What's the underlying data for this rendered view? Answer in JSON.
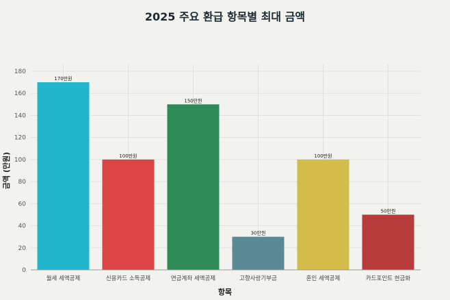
{
  "chart_data": {
    "type": "bar",
    "title": "2025 주요 환급 항목별 최대 금액",
    "xlabel": "항목",
    "ylabel": "금액 (만원)",
    "ylim": [
      0,
      180
    ],
    "yticks": [
      0,
      20,
      40,
      60,
      80,
      100,
      120,
      140,
      160,
      180
    ],
    "grid": true,
    "categories": [
      "월세 세액공제",
      "신용카드 소득공제",
      "연금계좌 세액공제",
      "고향사랑기부금",
      "혼인 세액공제",
      "카드포인트 현금화"
    ],
    "values": [
      170,
      100,
      150,
      30,
      100,
      50
    ],
    "data_labels": [
      "170만원",
      "100만원",
      "150만원",
      "30만원",
      "100만원",
      "50만원"
    ],
    "colors": [
      "#22b5cc",
      "#dc4545",
      "#2e8b57",
      "#5b8a94",
      "#d4bc4a",
      "#b83c3c"
    ]
  }
}
